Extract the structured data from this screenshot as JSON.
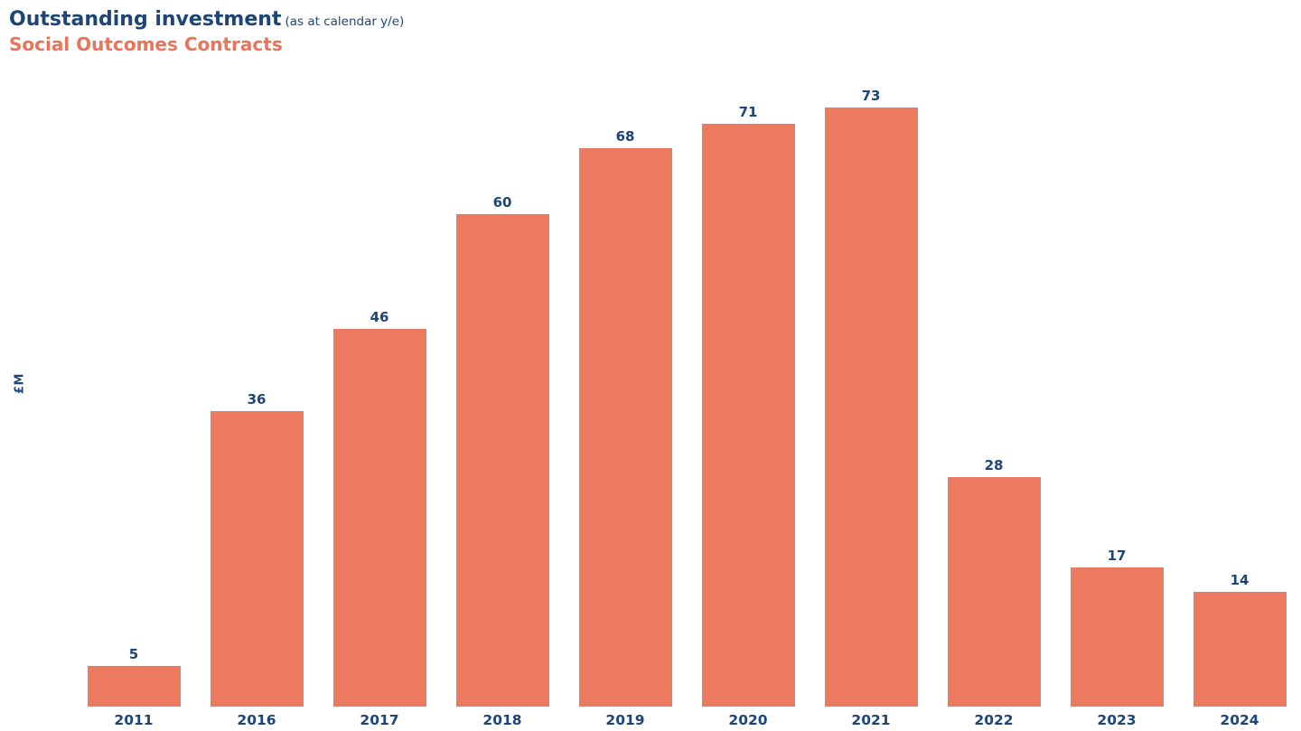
{
  "header": {
    "title": "Outstanding investment",
    "title_suffix": "(as at calendar y/e)",
    "subtitle": "Social Outcomes Contracts"
  },
  "colors": {
    "background": "#FFFFFF",
    "navy": "#1D4577",
    "coral_bar": "#EB7A60",
    "coral_subtitle": "#E8745A"
  },
  "chart_data": {
    "type": "bar",
    "title": "Outstanding investment (as at calendar y/e)",
    "subtitle": "Social Outcomes Contracts",
    "categories": [
      "2011",
      "2016",
      "2017",
      "2018",
      "2019",
      "2020",
      "2021",
      "2022",
      "2023",
      "2024"
    ],
    "values": [
      5,
      36,
      46,
      60,
      68,
      71,
      73,
      28,
      17,
      14
    ],
    "xlabel": "",
    "ylabel": "£M",
    "ylim": [
      0,
      75
    ],
    "grid": false,
    "legend_position": "none",
    "value_labels": "above bars",
    "axis_lines": "none"
  }
}
